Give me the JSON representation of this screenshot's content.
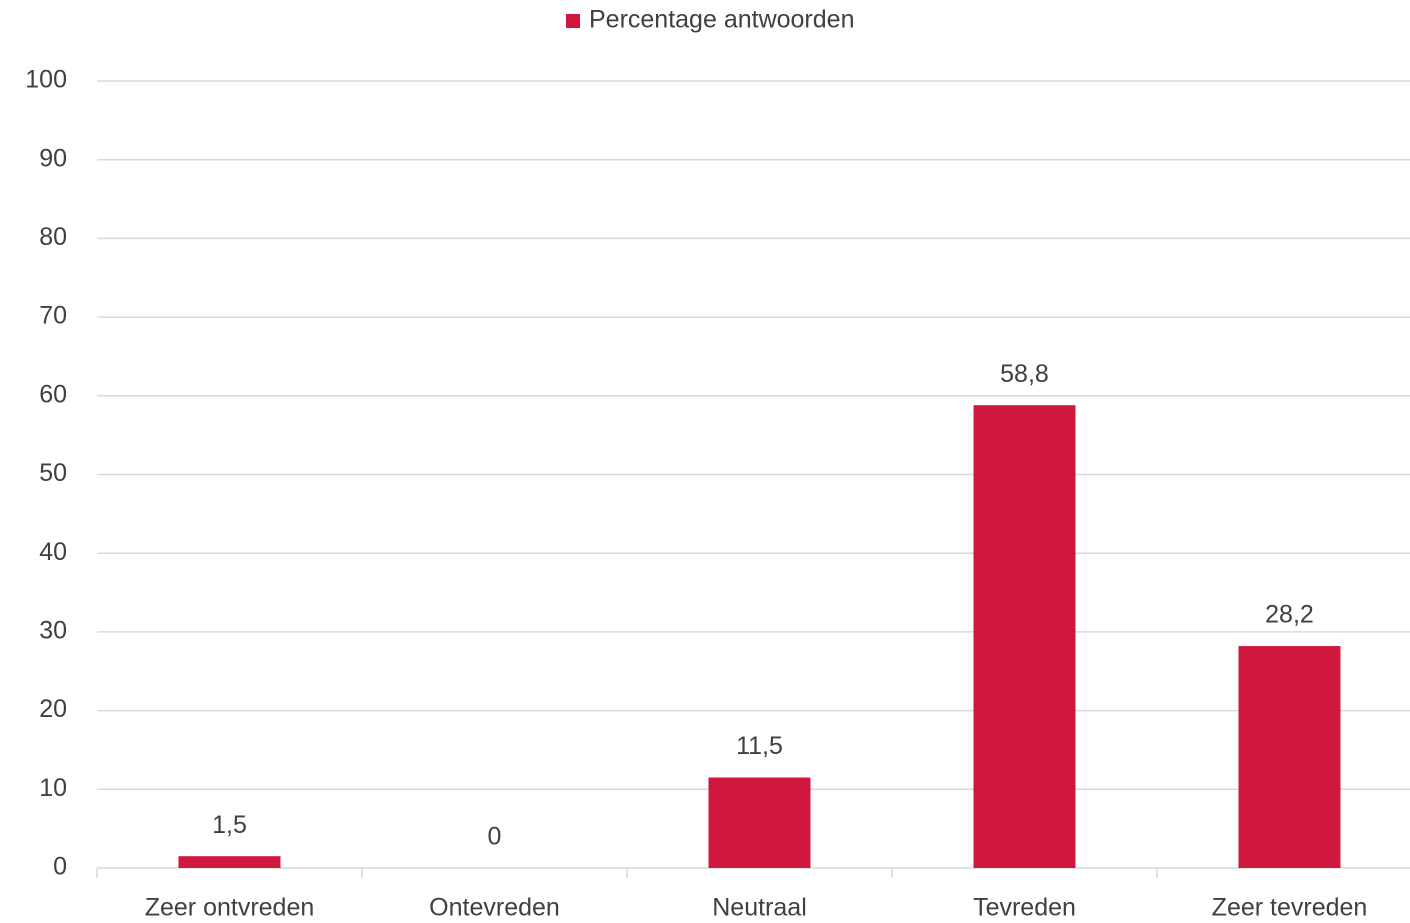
{
  "chart_data": {
    "type": "bar",
    "legend": "Percentage antwoorden",
    "categories": [
      "Zeer ontvreden",
      "Ontevreden",
      "Neutraal",
      "Tevreden",
      "Zeer tevreden"
    ],
    "values": [
      1.5,
      0,
      11.5,
      58.8,
      28.2
    ],
    "value_labels": [
      "1,5",
      "0",
      "11,5",
      "58,8",
      "28,2"
    ],
    "color": "#d0183f",
    "ylim": [
      0,
      100
    ],
    "yticks": [
      0,
      10,
      20,
      30,
      40,
      50,
      60,
      70,
      80,
      90,
      100
    ],
    "grid": true,
    "legend_position": "top"
  }
}
